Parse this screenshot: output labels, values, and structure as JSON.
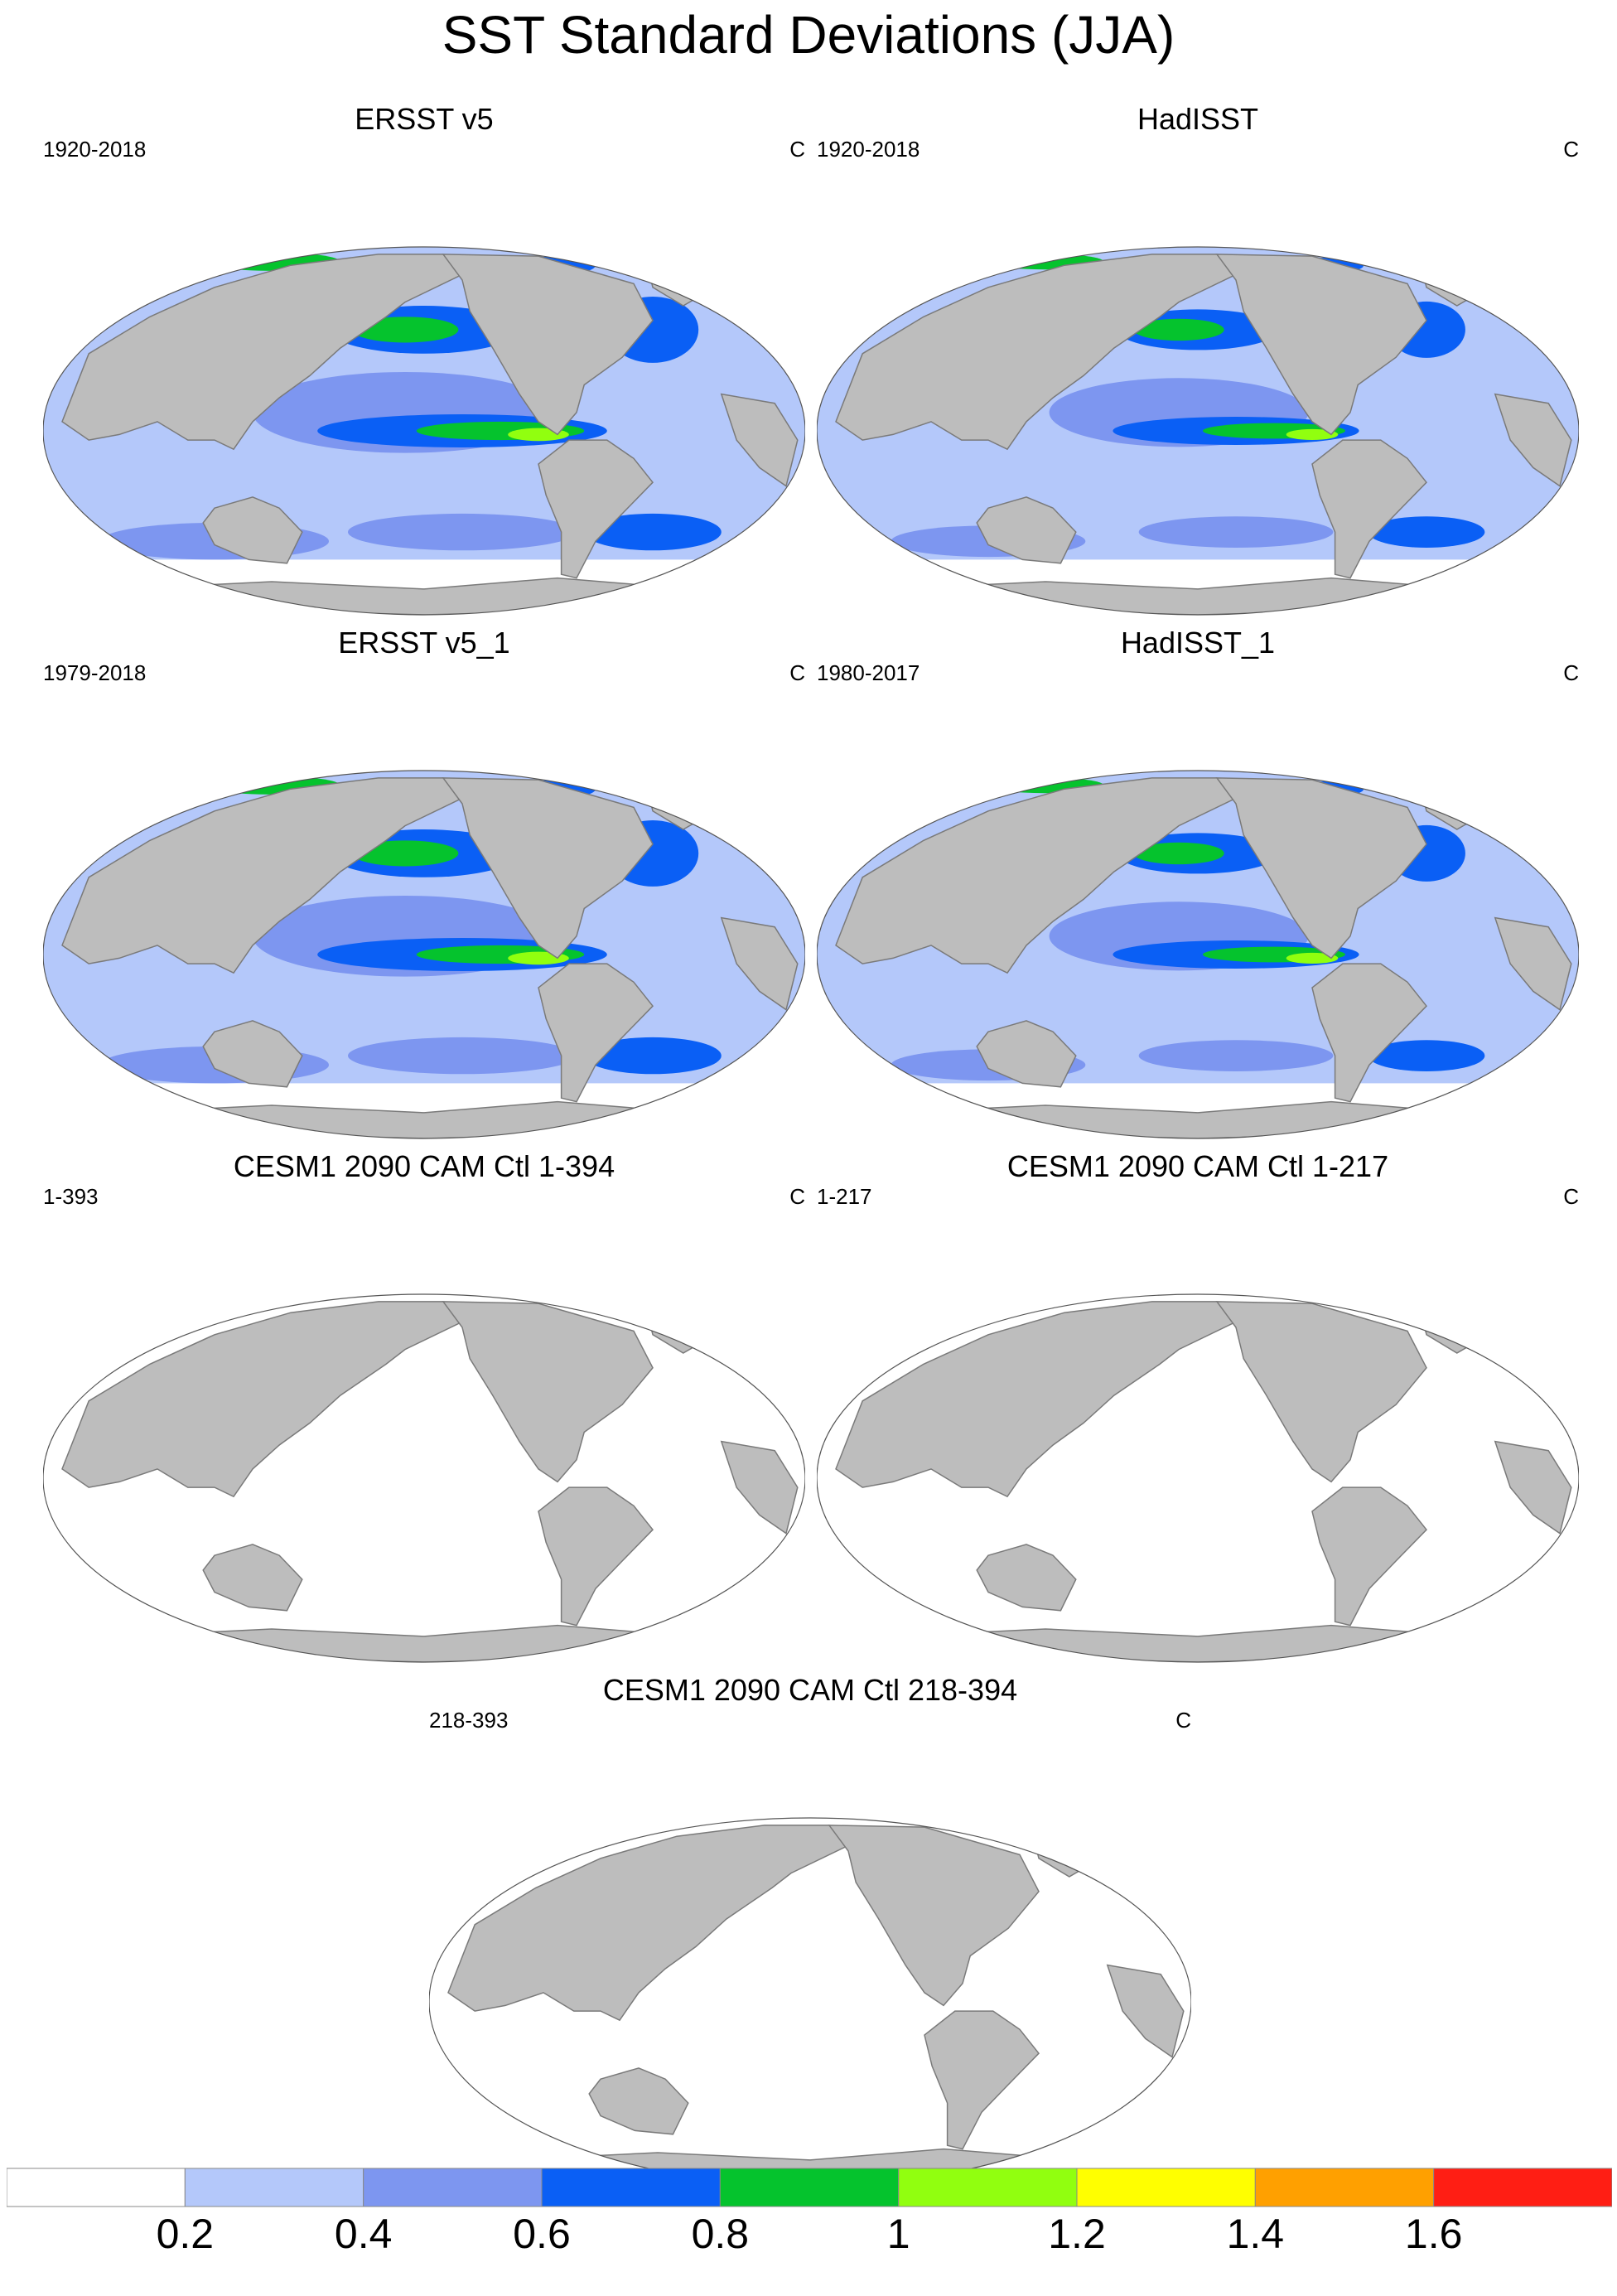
{
  "title": "SST Standard Deviations (JJA)",
  "colors": {
    "land": "#bdbdbd",
    "coast": "#7a7a7a",
    "frame": "#555555"
  },
  "panels": [
    {
      "title": "ERSST v5",
      "left": "1920-2018",
      "right": "C",
      "pattern": "obs"
    },
    {
      "title": "HadISST",
      "left": "1920-2018",
      "right": "C",
      "pattern": "obs2"
    },
    {
      "title": "ERSST v5_1",
      "left": "1979-2018",
      "right": "C",
      "pattern": "obs"
    },
    {
      "title": "HadISST_1",
      "left": "1980-2017",
      "right": "C",
      "pattern": "obs2"
    },
    {
      "title": "CESM1 2090 CAM Ctl 1-394",
      "left": "1-393",
      "right": "C",
      "pattern": "model"
    },
    {
      "title": "CESM1 2090 CAM Ctl 1-217",
      "left": "1-217",
      "right": "C",
      "pattern": "model"
    },
    {
      "title": "CESM1 2090 CAM Ctl 218-394",
      "left": "218-393",
      "right": "C",
      "pattern": "model"
    }
  ],
  "colorbar": {
    "colors": [
      "#ffffff",
      "#b4c8fa",
      "#7d96f0",
      "#0a5ff5",
      "#05c32d",
      "#91ff0f",
      "#ffff00",
      "#ffa000",
      "#ff1e14"
    ],
    "labels": [
      "0.2",
      "0.4",
      "0.6",
      "0.8",
      "1",
      "1.2",
      "1.4",
      "1.6"
    ]
  }
}
